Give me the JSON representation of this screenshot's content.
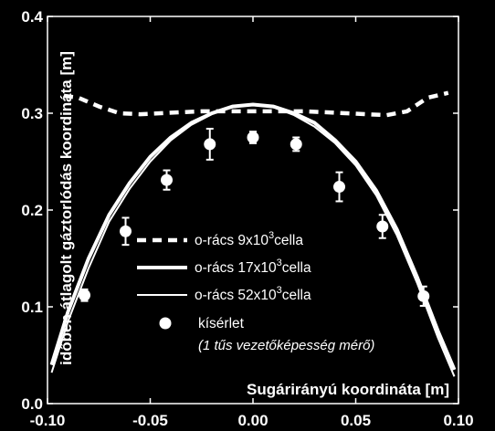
{
  "chart_data": {
    "type": "line",
    "xlabel": "Sugárirányú koordináta [m]",
    "ylabel": "időben átlagolt gáztorlódás koordináta [m]",
    "xlim": [
      -0.1,
      0.1
    ],
    "ylim": [
      0.0,
      0.4
    ],
    "x_ticks": [
      "-0.10",
      "-0.05",
      "0.00",
      "0.05",
      "0.10"
    ],
    "y_ticks": [
      "0.0",
      "0.1",
      "0.2",
      "0.3",
      "0.4"
    ],
    "x_tick_values": [
      -0.1,
      -0.05,
      0.0,
      0.05,
      0.1
    ],
    "y_tick_values": [
      0.0,
      0.1,
      0.2,
      0.3,
      0.4
    ],
    "grid": false,
    "legend_position": "center",
    "series": [
      {
        "name": "o-rács 9x10",
        "name_sup": "3",
        "name_suffix": "cella",
        "style": "dashed",
        "color": "#ffffff",
        "x": [
          -0.092,
          -0.085,
          -0.075,
          -0.065,
          -0.055,
          -0.045,
          -0.035,
          -0.025,
          -0.015,
          -0.005,
          0.0,
          0.005,
          0.015,
          0.025,
          0.035,
          0.045,
          0.055,
          0.065,
          0.075,
          0.085,
          0.095
        ],
        "y": [
          0.318,
          0.316,
          0.307,
          0.3,
          0.299,
          0.3,
          0.301,
          0.302,
          0.302,
          0.302,
          0.302,
          0.302,
          0.302,
          0.302,
          0.301,
          0.3,
          0.299,
          0.298,
          0.302,
          0.316,
          0.321
        ]
      },
      {
        "name": "o-rács 17x10",
        "name_sup": "3",
        "name_suffix": "cella",
        "style": "thick",
        "color": "#ffffff",
        "x": [
          -0.098,
          -0.09,
          -0.08,
          -0.07,
          -0.06,
          -0.05,
          -0.04,
          -0.03,
          -0.02,
          -0.01,
          0.0,
          0.01,
          0.02,
          0.03,
          0.04,
          0.05,
          0.06,
          0.07,
          0.08,
          0.09,
          0.098
        ],
        "y": [
          0.04,
          0.095,
          0.15,
          0.195,
          0.228,
          0.255,
          0.275,
          0.29,
          0.3,
          0.307,
          0.309,
          0.307,
          0.3,
          0.29,
          0.272,
          0.25,
          0.22,
          0.18,
          0.13,
          0.075,
          0.035
        ]
      },
      {
        "name": "o-rács 52x10",
        "name_sup": "3",
        "name_suffix": "cella",
        "style": "thin",
        "color": "#ffffff",
        "x": [
          -0.098,
          -0.09,
          -0.08,
          -0.07,
          -0.06,
          -0.05,
          -0.04,
          -0.03,
          -0.02,
          -0.01,
          0.0,
          0.01,
          0.02,
          0.03,
          0.04,
          0.05,
          0.06,
          0.07,
          0.08,
          0.09,
          0.098
        ],
        "y": [
          0.032,
          0.085,
          0.14,
          0.188,
          0.222,
          0.25,
          0.272,
          0.288,
          0.299,
          0.306,
          0.309,
          0.306,
          0.298,
          0.286,
          0.269,
          0.246,
          0.215,
          0.174,
          0.124,
          0.068,
          0.028
        ]
      },
      {
        "name": "kísérlet",
        "subtitle": "(1 tűs vezetőképesség mérő)",
        "style": "markers",
        "color": "#ffffff",
        "x": [
          -0.082,
          -0.062,
          -0.042,
          -0.021,
          0.0,
          0.021,
          0.042,
          0.063,
          0.083
        ],
        "y": [
          0.112,
          0.178,
          0.231,
          0.268,
          0.275,
          0.268,
          0.224,
          0.183,
          0.111
        ],
        "err": [
          0.006,
          0.014,
          0.01,
          0.016,
          0.006,
          0.007,
          0.015,
          0.012,
          0.01
        ]
      }
    ]
  }
}
